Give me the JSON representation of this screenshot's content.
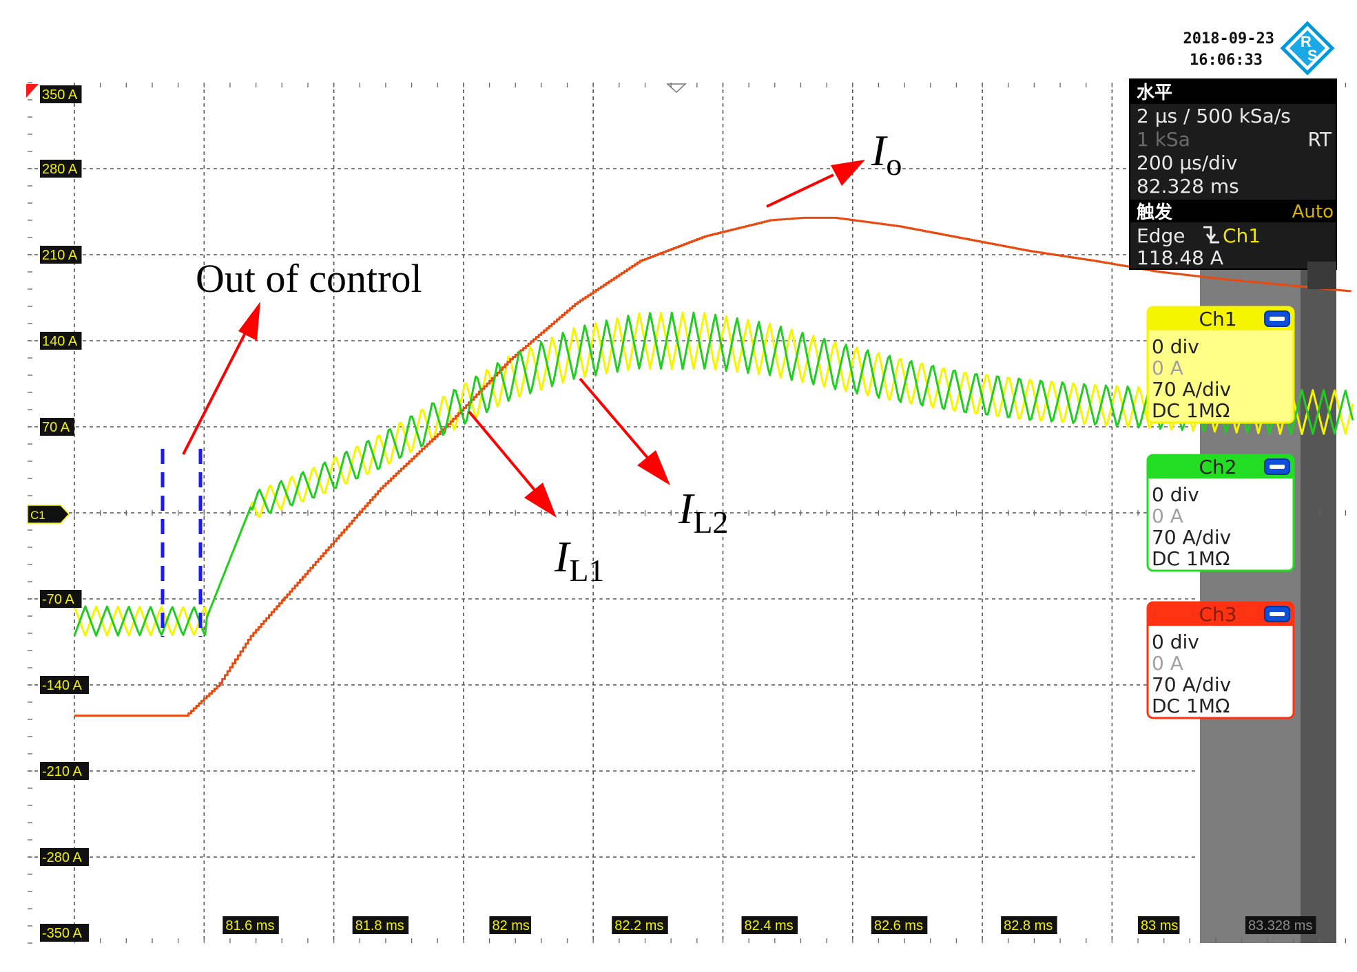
{
  "header": {
    "date": "2018-09-23",
    "time": "16:06:33"
  },
  "horizontal_panel": {
    "title": "水平",
    "sample": "2 µs / 500 kSa/s",
    "record": "1 kSa",
    "mode": "RT",
    "timebase": "200 µs/div",
    "position": "82.328 ms"
  },
  "trigger_panel": {
    "title": "触发",
    "mode": "Auto",
    "type": "Edge",
    "source": "Ch1",
    "level": "118.48 A"
  },
  "channels": [
    {
      "name": "Ch1",
      "color": "#f5f500",
      "pos": "0 div",
      "offset": "0 A",
      "scale": "70 A/div",
      "coupling": "DC 1MΩ"
    },
    {
      "name": "Ch2",
      "color": "#22dd22",
      "pos": "0 div",
      "offset": "0 A",
      "scale": "70 A/div",
      "coupling": "DC 1MΩ"
    },
    {
      "name": "Ch3",
      "color": "#ff3311",
      "pos": "0 div",
      "offset": "0 A",
      "scale": "70 A/div",
      "coupling": "DC 1MΩ"
    }
  ],
  "channel_marker": "C1",
  "annotations": {
    "out_of_control": "Out of control",
    "io_main": "I",
    "io_sub": "o",
    "il1_main": "I",
    "il1_sub": "L1",
    "il2_main": "I",
    "il2_sub": "L2"
  },
  "chart_data": {
    "type": "line",
    "y_ticks": [
      "350 A",
      "280 A",
      "210 A",
      "140 A",
      "70 A",
      "-70 A",
      "-140 A",
      "-210 A",
      "-280 A",
      "-350 A"
    ],
    "x_ticks": [
      "81.6 ms",
      "81.8 ms",
      "82 ms",
      "82.2 ms",
      "82.4 ms",
      "82.6 ms",
      "82.8 ms",
      "83 ms",
      "83.328 ms"
    ],
    "x_unit": "ms",
    "y_unit": "A",
    "xlim": [
      81.328,
      83.328
    ],
    "ylim": [
      -350,
      350
    ],
    "grid": true,
    "series": [
      {
        "name": "Ch3",
        "color": "#e84a10",
        "x": [
          81.328,
          81.5,
          81.55,
          81.6,
          81.7,
          81.8,
          81.9,
          82.0,
          82.1,
          82.2,
          82.3,
          82.4,
          82.45,
          82.5,
          82.6,
          82.7,
          82.8,
          82.9,
          83.0,
          83.1,
          83.2,
          83.3
        ],
        "y": [
          -165,
          -165,
          -140,
          -100,
          -40,
          20,
          70,
          125,
          170,
          205,
          225,
          238,
          240,
          240,
          233,
          223,
          213,
          205,
          196,
          190,
          185,
          180
        ]
      },
      {
        "name": "Ch1",
        "color": "#f5f500",
        "x": [
          81.328,
          81.4,
          81.5,
          81.53,
          81.6,
          81.7,
          81.8,
          81.9,
          82.0,
          82.1,
          82.2,
          82.3,
          82.4,
          82.5,
          82.6,
          82.7,
          82.8,
          82.9,
          83.0,
          83.1,
          83.2,
          83.3
        ],
        "y": [
          -88,
          -88,
          -88,
          -88,
          5,
          25,
          50,
          80,
          110,
          130,
          140,
          140,
          133,
          120,
          108,
          98,
          92,
          88,
          85,
          83,
          82,
          82
        ],
        "ripple": [
          12,
          12,
          12,
          12,
          12,
          14,
          16,
          18,
          20,
          22,
          23,
          23,
          22,
          21,
          20,
          19,
          19,
          18,
          18,
          18,
          18,
          18
        ]
      },
      {
        "name": "Ch2",
        "color": "#22cc22",
        "x": [
          81.328,
          81.4,
          81.5,
          81.53,
          81.6,
          81.7,
          81.8,
          81.9,
          82.0,
          82.1,
          82.2,
          82.3,
          82.4,
          82.5,
          82.6,
          82.7,
          82.8,
          82.9,
          83.0,
          83.1,
          83.2,
          83.3
        ],
        "y": [
          -88,
          -88,
          -88,
          -88,
          5,
          25,
          50,
          80,
          110,
          130,
          140,
          140,
          133,
          120,
          108,
          98,
          92,
          88,
          85,
          83,
          82,
          82
        ],
        "ripple": [
          12,
          12,
          12,
          12,
          12,
          14,
          16,
          18,
          20,
          22,
          23,
          23,
          22,
          21,
          20,
          19,
          19,
          18,
          18,
          18,
          18,
          18
        ]
      }
    ]
  }
}
